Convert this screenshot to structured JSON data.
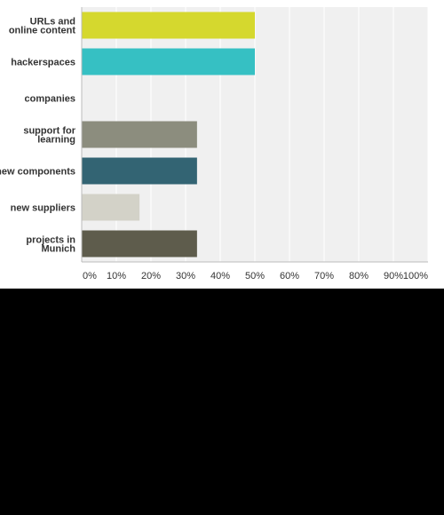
{
  "chart_data": {
    "type": "bar",
    "orientation": "horizontal",
    "categories": [
      "URLs and online content",
      "hackerspaces",
      "companies",
      "support for learning",
      "new components",
      "new suppliers",
      "projects in Munich"
    ],
    "category_lines": [
      [
        "URLs and",
        "online content"
      ],
      [
        "hackerspaces"
      ],
      [
        "companies"
      ],
      [
        "support for",
        "learning"
      ],
      [
        "new components"
      ],
      [
        "new suppliers"
      ],
      [
        "projects in",
        "Munich"
      ]
    ],
    "values": [
      50,
      50,
      0,
      33.3,
      33.3,
      16.7,
      33.3
    ],
    "colors": [
      "#d5d82e",
      "#36c0c3",
      "#bdbdbd",
      "#8c8d7e",
      "#336473",
      "#d3d2c8",
      "#5e5c4c"
    ],
    "xlim": [
      0,
      100
    ],
    "x_ticks": [
      "0%",
      "10%",
      "20%",
      "30%",
      "40%",
      "50%",
      "60%",
      "70%",
      "80%",
      "90%",
      "100%"
    ],
    "x_tick_values": [
      0,
      10,
      20,
      30,
      40,
      50,
      60,
      70,
      80,
      90,
      100
    ],
    "grid": true,
    "plot_background": "#f0f0f0",
    "grid_color": "#ffffff"
  }
}
